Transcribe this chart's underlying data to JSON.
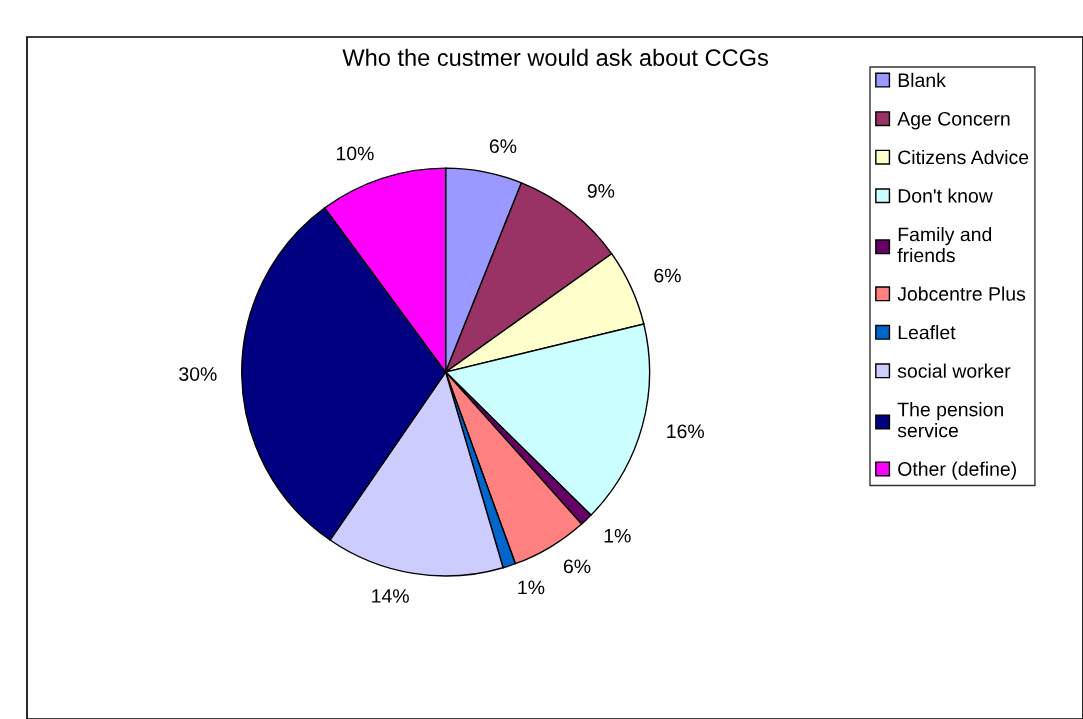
{
  "chart_data": {
    "type": "pie",
    "title": "Who the custmer would ask about CCGs",
    "categories": [
      "Blank",
      "Age Concern",
      "Citizens Advice",
      "Don't know",
      "Family and\nfriends",
      "Jobcentre Plus",
      "Leaflet",
      "social worker",
      "The pension\nservice",
      "Other (define)"
    ],
    "values": [
      6,
      9,
      6,
      16,
      1,
      6,
      1,
      14,
      30,
      10
    ],
    "value_labels": [
      "6%",
      "9%",
      "6%",
      "16%",
      "1%",
      "6%",
      "1%",
      "14%",
      "30%",
      "10%"
    ],
    "colors": [
      "#9999ff",
      "#993366",
      "#ffffcc",
      "#ccffff",
      "#660066",
      "#ff8080",
      "#0066cc",
      "#ccccff",
      "#000080",
      "#ff00ff"
    ],
    "legend": "right"
  }
}
